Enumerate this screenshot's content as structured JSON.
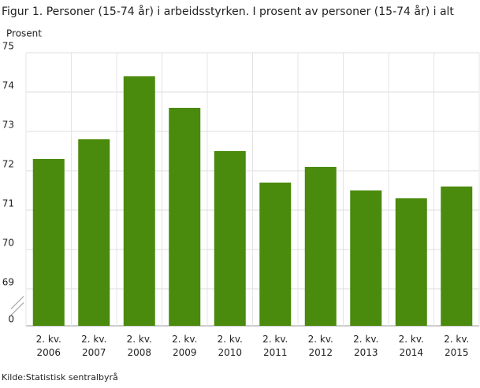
{
  "chart_data": {
    "type": "bar",
    "title": "Figur 1. Personer (15-74 år) i arbeidsstyrken. I prosent av personer (15-74 år) i alt",
    "y_label": "Prosent",
    "source": "Kilde:Statistisk sentralbyrå",
    "categories": [
      "2. kv. 2006",
      "2. kv. 2007",
      "2. kv. 2008",
      "2. kv. 2009",
      "2. kv. 2010",
      "2. kv. 2011",
      "2. kv. 2012",
      "2. kv. 2013",
      "2. kv. 2014",
      "2. kv. 2015"
    ],
    "values": [
      72.3,
      72.8,
      74.4,
      73.6,
      72.5,
      71.7,
      72.1,
      71.5,
      71.3,
      71.6
    ],
    "color": "#4a8a0c",
    "ylim": [
      0,
      75
    ],
    "yticks": [
      0,
      69,
      70,
      71,
      72,
      73,
      74,
      75
    ],
    "axis_break": true,
    "grid": true
  }
}
